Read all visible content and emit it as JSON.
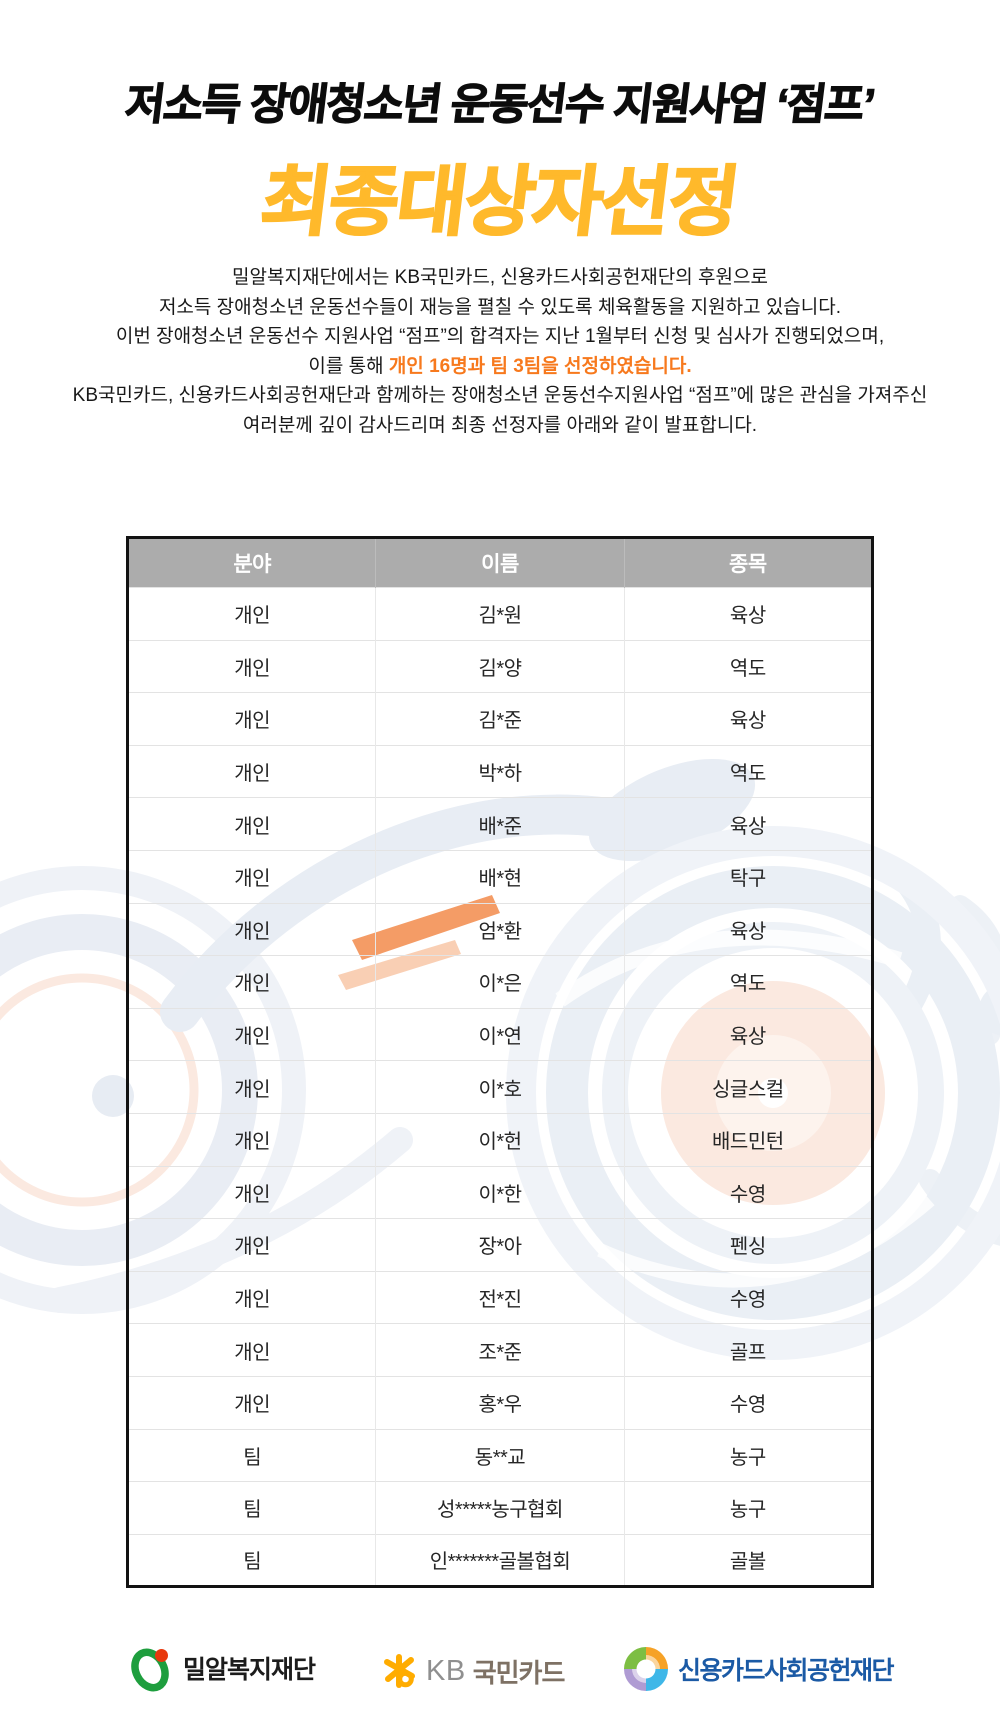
{
  "header": {
    "title": "저소득 장애청소년 운동선수 지원사업 ‘점프’",
    "subtitle": "최종대상자선정"
  },
  "intro": {
    "lines": [
      [
        {
          "t": "밀알복지재단에서는 KB국민카드, 신용카드사회공헌재단의 후원으로"
        }
      ],
      [
        {
          "t": "저소득 장애청소년 운동선수들이 재능을 펼칠 수 있도록 체육활동을 지원하고 있습니다."
        }
      ],
      [
        {
          "t": "이번 장애청소년 운동선수 지원사업 “점프”의 합격자는 지난 1월부터 신청 및 심사가 진행되었으며,"
        }
      ],
      [
        {
          "t": "이를 통해 "
        },
        {
          "t": "개인 16명과 팀 3팀을 선정하였습니다.",
          "hl": true
        }
      ],
      [
        {
          "t": "KB국민카드, 신용카드사회공헌재단과 함께하는 장애청소년 운동선수지원사업 “점프”에 많은 관심을 가져주신"
        }
      ],
      [
        {
          "t": "여러분께 깊이 감사드리며 최종 선정자를 아래와 같이 발표합니다."
        }
      ]
    ]
  },
  "table": {
    "headers": [
      "분야",
      "이름",
      "종목"
    ],
    "rows": [
      [
        "개인",
        "김*원",
        "육상"
      ],
      [
        "개인",
        "김*양",
        "역도"
      ],
      [
        "개인",
        "김*준",
        "육상"
      ],
      [
        "개인",
        "박*하",
        "역도"
      ],
      [
        "개인",
        "배*준",
        "육상"
      ],
      [
        "개인",
        "배*현",
        "탁구"
      ],
      [
        "개인",
        "엄*환",
        "육상"
      ],
      [
        "개인",
        "이*은",
        "역도"
      ],
      [
        "개인",
        "이*연",
        "육상"
      ],
      [
        "개인",
        "이*호",
        "싱글스컬"
      ],
      [
        "개인",
        "이*헌",
        "배드민턴"
      ],
      [
        "개인",
        "이*한",
        "수영"
      ],
      [
        "개인",
        "장*아",
        "펜싱"
      ],
      [
        "개인",
        "전*진",
        "수영"
      ],
      [
        "개인",
        "조*준",
        "골프"
      ],
      [
        "개인",
        "홍*우",
        "수영"
      ],
      [
        "팀",
        "동**교",
        "농구"
      ],
      [
        "팀",
        "성*****농구협회",
        "농구"
      ],
      [
        "팀",
        "인*******골볼협회",
        "골볼"
      ]
    ]
  },
  "footer": {
    "logos": [
      {
        "id": "milal",
        "label": "밀알복지재단"
      },
      {
        "id": "kb",
        "symbol_text": "KB",
        "label": "국민카드"
      },
      {
        "id": "ccsf",
        "label": "신용카드사회공헌재단"
      }
    ]
  },
  "colors": {
    "title_yellow": "#FFB92B",
    "highlight_orange": "#F7791D",
    "table_header_bg": "#ACACAC",
    "milal_green": "#1E9E3E",
    "milal_red": "#E8380D",
    "kb_yellow": "#FFAC00",
    "ccsf_blue": "#1B5AA5"
  }
}
